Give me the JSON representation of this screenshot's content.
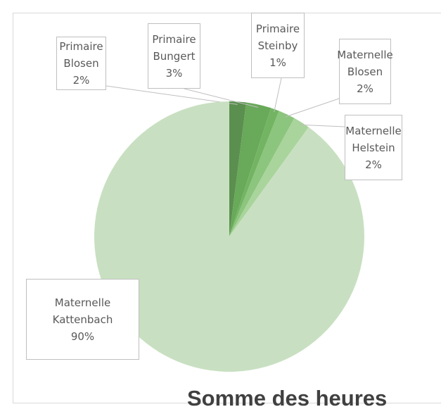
{
  "chart_data": {
    "type": "pie",
    "title": "Somme des heures",
    "categories": [
      "Primaire Blosen",
      "Primaire Bungert",
      "Primaire Steinby",
      "Maternelle Blosen",
      "Maternelle Helstein",
      "Maternelle Kattenbach"
    ],
    "values": [
      2,
      3,
      1,
      2,
      2,
      90
    ],
    "value_labels": [
      "2%",
      "3%",
      "1%",
      "2%",
      "2%",
      "90%"
    ],
    "colors": [
      "#5b8f4f",
      "#69a95a",
      "#73b463",
      "#8cc57d",
      "#a9d49c",
      "#c8e0c1"
    ]
  }
}
